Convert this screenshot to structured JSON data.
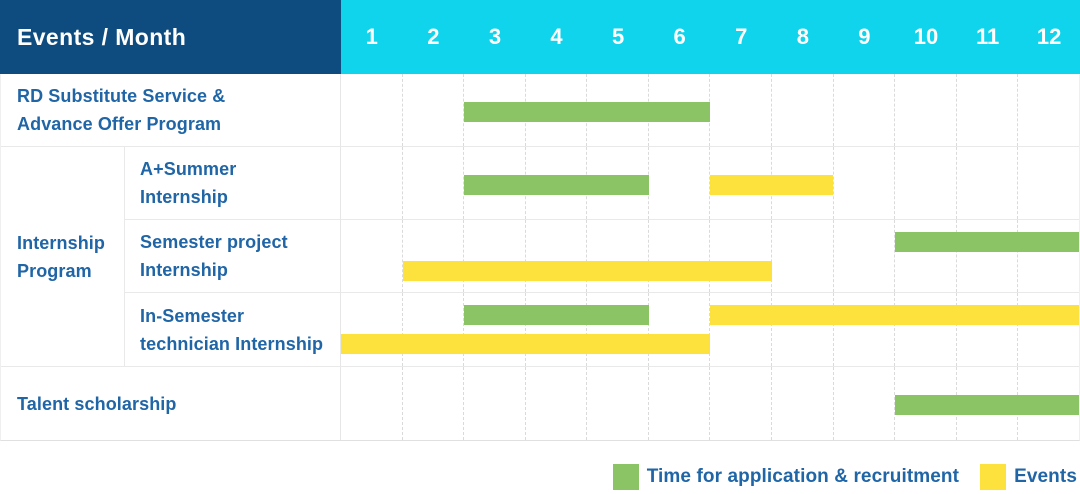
{
  "chart_data": {
    "type": "table",
    "subtype": "gantt",
    "title": "Events / Month",
    "x_axis_unit": "month",
    "x_range": [
      1,
      12
    ],
    "months": [
      "1",
      "2",
      "3",
      "4",
      "5",
      "6",
      "7",
      "8",
      "9",
      "10",
      "11",
      "12"
    ],
    "colors": {
      "application": "#8bc464",
      "event": "#fde13c",
      "header_bg": "#0e4c80",
      "months_bg": "#0fd4ec",
      "label_text": "#2065a6"
    },
    "legend": [
      {
        "type": "application",
        "label": "Time for application & recruitment"
      },
      {
        "type": "event",
        "label": "Events"
      }
    ],
    "rows": [
      {
        "group": "",
        "label": "RD Substitute Service &\nAdvance Offer Program",
        "bars": [
          {
            "type": "application",
            "start_month": 3,
            "end_month": 6,
            "lane": "center"
          }
        ]
      },
      {
        "group": "Internship\nProgram",
        "label": "A+Summer\nInternship",
        "bars": [
          {
            "type": "application",
            "start_month": 3,
            "end_month": 5,
            "lane": "center"
          },
          {
            "type": "event",
            "start_month": 7,
            "end_month": 8,
            "lane": "center"
          }
        ]
      },
      {
        "group": "Internship\nProgram",
        "label": "Semester project\nInternship",
        "bars": [
          {
            "type": "application",
            "start_month": 10,
            "end_month": 12,
            "lane": "upper"
          },
          {
            "type": "event",
            "start_month": 2,
            "end_month": 7,
            "lane": "lower"
          }
        ]
      },
      {
        "group": "Internship\nProgram",
        "label": "In-Semester\ntechnician Internship",
        "bars": [
          {
            "type": "application",
            "start_month": 3,
            "end_month": 5,
            "lane": "upper"
          },
          {
            "type": "event",
            "start_month": 7,
            "end_month": 12,
            "lane": "upper"
          },
          {
            "type": "event",
            "start_month": 1,
            "end_month": 6,
            "lane": "lower"
          }
        ]
      },
      {
        "group": "",
        "label": "Talent scholarship",
        "bars": [
          {
            "type": "application",
            "start_month": 10,
            "end_month": 12,
            "lane": "center"
          }
        ]
      }
    ]
  }
}
